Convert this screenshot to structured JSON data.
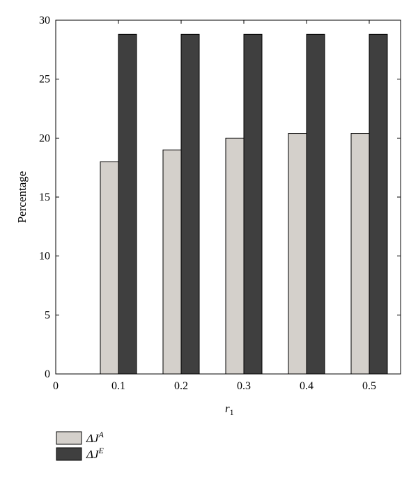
{
  "chart_data": {
    "type": "bar",
    "categories": [
      "0.1",
      "0.2",
      "0.3",
      "0.4",
      "0.5"
    ],
    "x_tick_labels": [
      "0",
      "0.1",
      "0.2",
      "0.3",
      "0.4",
      "0.5"
    ],
    "y_tick_labels": [
      "0",
      "5",
      "10",
      "15",
      "20",
      "25",
      "30"
    ],
    "series": [
      {
        "name": "ΔJ^A",
        "name_main": "ΔJ",
        "name_sup": "A",
        "color": "#d4d0cb",
        "values": [
          18.0,
          19.0,
          20.0,
          20.4,
          20.4
        ]
      },
      {
        "name": "ΔJ^E",
        "name_main": "ΔJ",
        "name_sup": "E",
        "color": "#3f3f3f",
        "values": [
          28.8,
          28.8,
          28.8,
          28.8,
          28.8
        ]
      }
    ],
    "xlabel_main": "r",
    "xlabel_sub": "1",
    "ylabel": "Percentage",
    "xlim": [
      0,
      0.55
    ],
    "ylim": [
      0,
      30
    ],
    "grid": false,
    "legend_position": "below-left"
  }
}
